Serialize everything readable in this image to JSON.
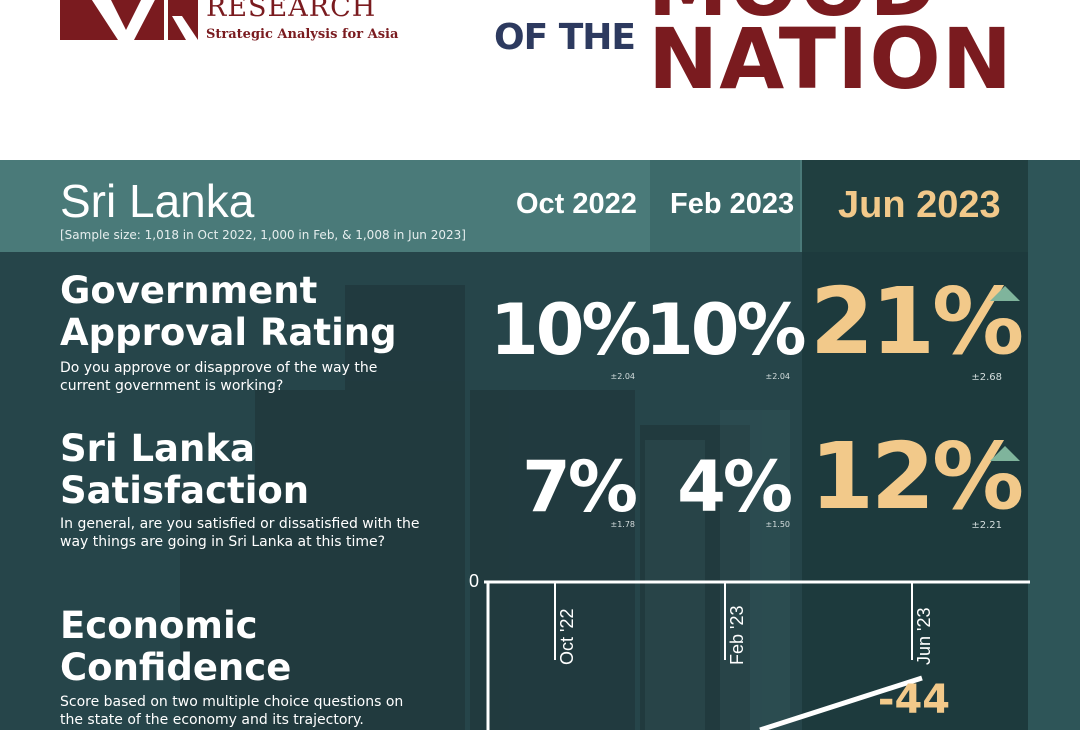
{
  "header": {
    "logo_word": "RESEARCH",
    "logo_tagline": "Strategic Analysis for Asia",
    "title_top": "MOOD",
    "title_mid": "OF THE",
    "title_big": "NATION",
    "brand_color": "#7a1b1f",
    "accent_navy": "#2d3a5f"
  },
  "panel": {
    "country": "Sri Lanka",
    "sample_note": "[Sample size: 1,018 in Oct 2022, 1,000 in Feb, & 1,008 in Jun 2023]",
    "columns": [
      "Oct 2022",
      "Feb 2023",
      "Jun 2023"
    ],
    "highlight_color": "#f2c98a",
    "up_arrow_color": "#7fb49c"
  },
  "metrics": [
    {
      "title_line1": "Government",
      "title_line2": "Approval Rating",
      "question": "Do you approve or disapprove of the way the current government is working?",
      "values": [
        "10%",
        "10%",
        "21%"
      ],
      "errors": [
        "±2.04",
        "±2.04",
        "±2.68"
      ],
      "trend": "up-arrow-icon"
    },
    {
      "title_line1": "Sri Lanka",
      "title_line2": "Satisfaction",
      "question": "In general, are you satisfied or dissatisfied with the way things are going in Sri Lanka at this time?",
      "values": [
        "7%",
        "4%",
        "12%"
      ],
      "errors": [
        "±1.78",
        "±1.50",
        "±2.21"
      ],
      "trend": "up-arrow-icon"
    },
    {
      "title_line1": "Economic",
      "title_line2": "Confidence",
      "question": "Score based on two multiple choice questions on the state of the economy and its trajectory."
    }
  ],
  "chart_data": {
    "type": "line",
    "categories": [
      "Oct '22",
      "Feb '23",
      "Jun '23"
    ],
    "y_zero_label": "0",
    "visible_data_labels": [
      null,
      null,
      "-44"
    ],
    "values": [
      null,
      null,
      -44
    ]
  }
}
